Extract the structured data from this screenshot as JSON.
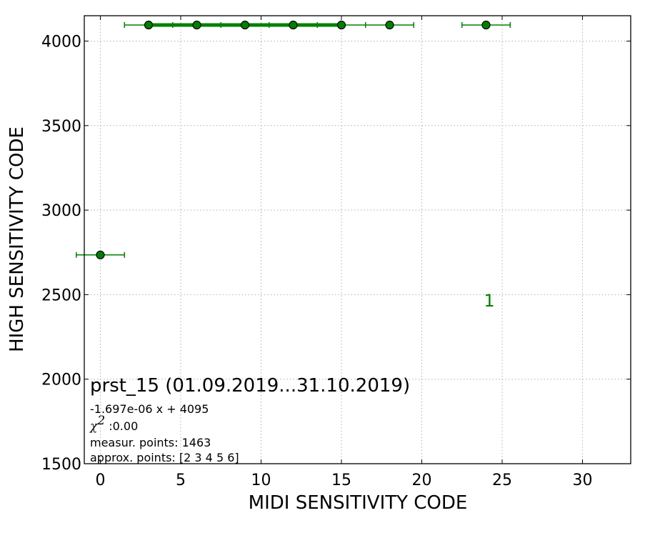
{
  "chart_data": {
    "type": "scatter",
    "xlabel": "MIDI SENSITIVITY CODE",
    "ylabel": "HIGH SENSITIVITY CODE",
    "xlim": [
      -1,
      33
    ],
    "ylim": [
      1500,
      4150
    ],
    "xticks": [
      0,
      5,
      10,
      15,
      20,
      25,
      30
    ],
    "yticks": [
      1500,
      2000,
      2500,
      3000,
      3500,
      4000
    ],
    "grid": true,
    "color": "#008000",
    "points": [
      {
        "x": 0,
        "y": 2735,
        "xerr": 1.5
      },
      {
        "x": 3,
        "y": 4095,
        "xerr": 1.5
      },
      {
        "x": 6,
        "y": 4095,
        "xerr": 1.5
      },
      {
        "x": 9,
        "y": 4095,
        "xerr": 1.5
      },
      {
        "x": 12,
        "y": 4095,
        "xerr": 1.5
      },
      {
        "x": 15,
        "y": 4095,
        "xerr": 1.5
      },
      {
        "x": 18,
        "y": 4095,
        "xerr": 1.5
      },
      {
        "x": 24,
        "y": 4095,
        "xerr": 1.5
      }
    ],
    "fit_line": {
      "x": [
        3,
        15
      ],
      "y": [
        4095,
        4095
      ]
    },
    "cluster_label": {
      "text": "1",
      "x": 24.2,
      "y": 2430
    },
    "annotations": {
      "title": "prst_15 (01.09.2019...31.10.2019)",
      "equation": "-1.697e-06 x + 4095",
      "chi_symbol": "χ",
      "chi_sup": "2",
      "chi_value": " :0.00",
      "measur_points": "measur. points: 1463",
      "approx_points": "approx. points: [2 3 4 5 6]"
    }
  }
}
